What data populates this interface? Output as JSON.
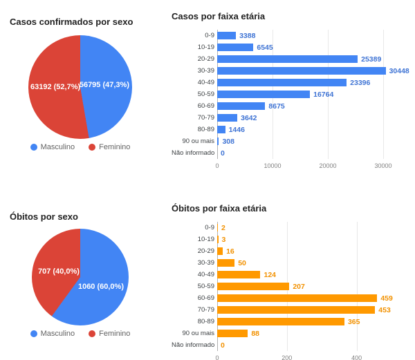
{
  "page": {
    "background": "#ffffff"
  },
  "palette": {
    "blue": "#4285f4",
    "red": "#db4437",
    "orange": "#ff9900"
  },
  "chart_data": [
    {
      "type": "pie",
      "title": "Casos confirmados por sexo",
      "labels": [
        "Masculino",
        "Feminino"
      ],
      "values": [
        56795,
        63192
      ],
      "percents": [
        47.3,
        52.7
      ],
      "slice_labels": [
        "56795 (47,3%)",
        "63192 (52,7%)"
      ],
      "colors": [
        "#4285f4",
        "#db4437"
      ],
      "legend_position": "bottom"
    },
    {
      "type": "bar",
      "orientation": "horizontal",
      "title": "Casos por faixa etária",
      "categories": [
        "0-9",
        "10-19",
        "20-29",
        "30-39",
        "40-49",
        "50-59",
        "60-69",
        "70-79",
        "80-89",
        "90 ou mais",
        "Não informado"
      ],
      "values": [
        3388,
        6545,
        25389,
        30448,
        23396,
        16764,
        8675,
        3642,
        1446,
        308,
        0
      ],
      "color": "#4285f4",
      "value_color": "#3e73d4",
      "xlim": [
        0,
        31500
      ],
      "xticks": [
        0,
        10000,
        20000,
        30000
      ],
      "grid": true,
      "legend_position": "none"
    },
    {
      "type": "pie",
      "title": "Óbitos por sexo",
      "labels": [
        "Masculino",
        "Feminino"
      ],
      "values": [
        1060,
        707
      ],
      "percents": [
        60.0,
        40.0
      ],
      "slice_labels": [
        "1060 (60,0%)",
        "707 (40,0%)"
      ],
      "colors": [
        "#4285f4",
        "#db4437"
      ],
      "legend_position": "bottom"
    },
    {
      "type": "bar",
      "orientation": "horizontal",
      "title": "Óbitos por faixa etária",
      "categories": [
        "0-9",
        "10-19",
        "20-29",
        "30-39",
        "40-49",
        "50-59",
        "60-69",
        "70-79",
        "80-89",
        "90 ou mais",
        "Não informado"
      ],
      "values": [
        2,
        3,
        16,
        50,
        124,
        207,
        459,
        453,
        365,
        88,
        0
      ],
      "color": "#ff9900",
      "value_color": "#f29100",
      "xlim": [
        0,
        500
      ],
      "xticks": [
        0,
        200,
        400
      ],
      "grid": true,
      "legend_position": "none"
    }
  ]
}
